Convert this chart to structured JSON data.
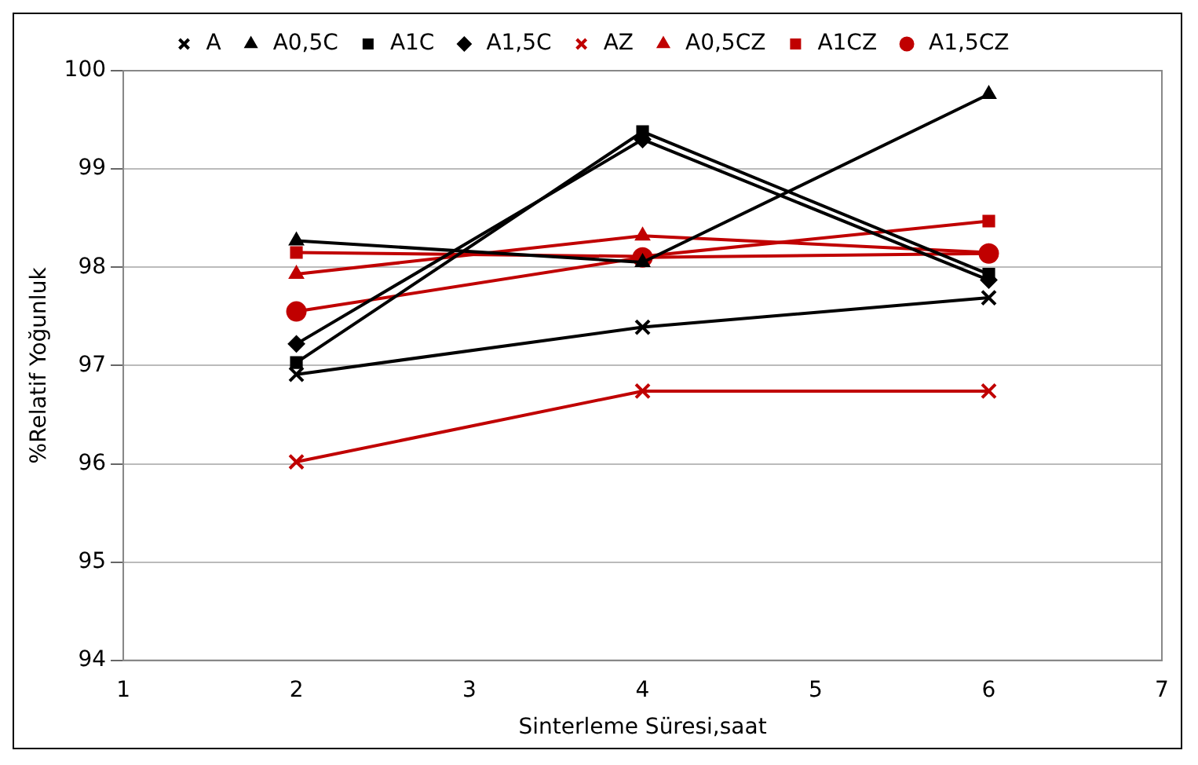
{
  "chart_data": {
    "type": "line",
    "xlabel": "Sinterleme Süresi,saat",
    "ylabel": "%Relatif Yoğunluk",
    "x": [
      2,
      4,
      6
    ],
    "xlim": [
      1,
      7
    ],
    "xticks": [
      1,
      2,
      3,
      4,
      5,
      6,
      7
    ],
    "ylim": [
      94,
      100
    ],
    "yticks": [
      94,
      95,
      96,
      97,
      98,
      99,
      100
    ],
    "grid": "y",
    "legend": "top",
    "series": [
      {
        "name": "A",
        "color": "#000000",
        "marker": "cross",
        "values": [
          96.91,
          97.39,
          97.69
        ]
      },
      {
        "name": "A0,5C",
        "color": "#000000",
        "marker": "triangle",
        "values": [
          98.27,
          98.05,
          99.76
        ]
      },
      {
        "name": "A1C",
        "color": "#000000",
        "marker": "square",
        "values": [
          97.03,
          99.38,
          97.93
        ]
      },
      {
        "name": "A1,5C",
        "color": "#000000",
        "marker": "diamond",
        "values": [
          97.22,
          99.3,
          97.87
        ]
      },
      {
        "name": "AZ",
        "color": "#c00000",
        "marker": "cross",
        "values": [
          96.02,
          96.74,
          96.74
        ]
      },
      {
        "name": "A0,5CZ",
        "color": "#c00000",
        "marker": "triangle",
        "values": [
          97.93,
          98.32,
          98.15
        ]
      },
      {
        "name": "A1CZ",
        "color": "#c00000",
        "marker": "square",
        "values": [
          98.15,
          98.11,
          98.47
        ]
      },
      {
        "name": "A1,5CZ",
        "color": "#c00000",
        "marker": "circle",
        "values": [
          97.55,
          98.1,
          98.14
        ]
      }
    ]
  }
}
